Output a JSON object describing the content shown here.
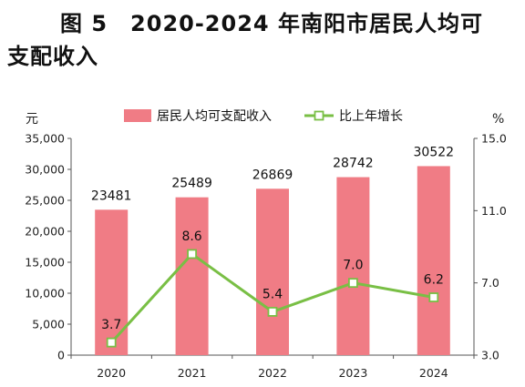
{
  "chart_data": {
    "type": "bar",
    "title_line1": "图 5　2020-2024 年南阳市居民人均可",
    "title_line2": "支配收入",
    "categories": [
      "2020",
      "2021",
      "2022",
      "2023",
      "2024"
    ],
    "series": [
      {
        "name": "居民人均可支配收入",
        "type": "bar",
        "axis": "left",
        "values": [
          23481,
          25489,
          26869,
          28742,
          30522
        ],
        "color": "#f07c85"
      },
      {
        "name": "比上年增长",
        "type": "line",
        "axis": "right",
        "values": [
          3.7,
          8.6,
          5.4,
          7.0,
          6.2
        ],
        "color": "#79bf45"
      }
    ],
    "y_left": {
      "unit": "元",
      "min": 0,
      "max": 35000,
      "ticks": [
        "0",
        "5,000",
        "10,000",
        "15,000",
        "20,000",
        "25,000",
        "30,000",
        "35,000"
      ]
    },
    "y_right": {
      "unit": "%",
      "min": 3.0,
      "max": 15.0,
      "ticks": [
        "3.0",
        "7.0",
        "11.0",
        "15.0"
      ]
    },
    "bar_labels": [
      "23481",
      "25489",
      "26869",
      "28742",
      "30522"
    ],
    "line_labels": [
      "3.7",
      "8.6",
      "5.4",
      "7.0",
      "6.2"
    ],
    "legend_position": "top",
    "grid": false
  }
}
